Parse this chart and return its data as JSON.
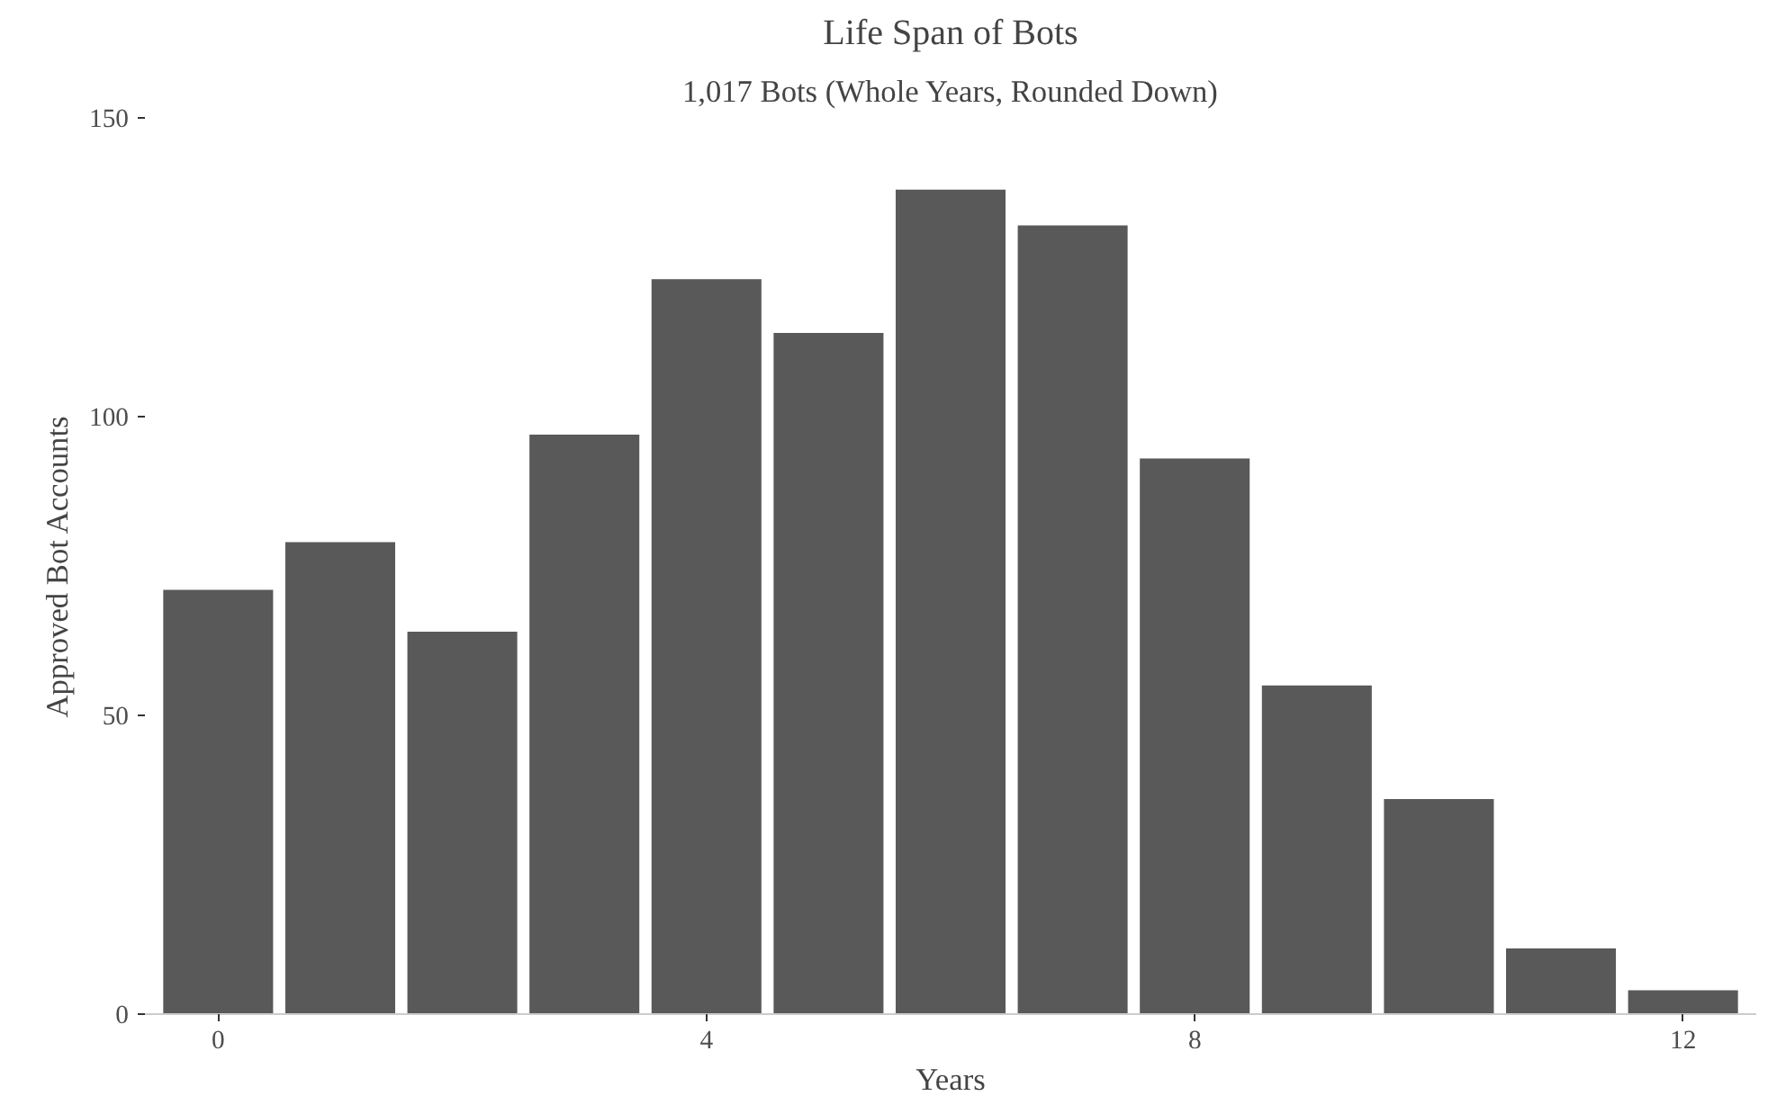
{
  "chart_data": {
    "type": "bar",
    "title": "Life Span of Bots",
    "subtitle": "1,017 Bots (Whole Years, Rounded Down)",
    "xlabel": "Years",
    "ylabel": "Approved Bot Accounts",
    "x": [
      0,
      1,
      2,
      3,
      4,
      5,
      6,
      7,
      8,
      9,
      10,
      11,
      12
    ],
    "values": [
      71,
      79,
      64,
      97,
      123,
      114,
      138,
      132,
      93,
      55,
      36,
      11,
      4
    ],
    "color": "#595959",
    "xlim": [
      -0.6,
      12.6
    ],
    "xticks": [
      0,
      4,
      8,
      12
    ],
    "ylim": [
      0,
      150
    ],
    "yticks": [
      0,
      50,
      100,
      150
    ],
    "grid": false
  }
}
